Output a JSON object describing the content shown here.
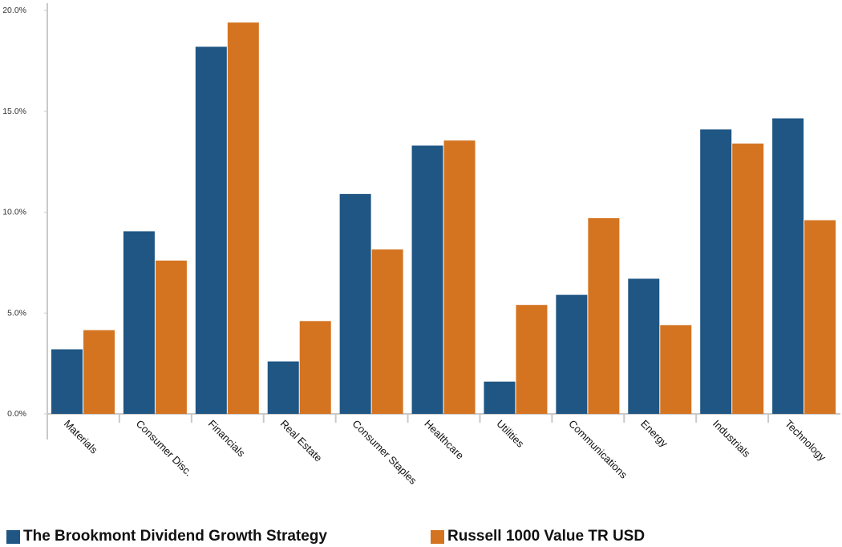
{
  "chart_data": {
    "type": "bar",
    "categories": [
      "Materials",
      "Consumer Disc.",
      "Financials",
      "Real Estate",
      "Consumer Staples",
      "Healthcare",
      "Utilities",
      "Communications",
      "Energy",
      "Industrials",
      "Technology"
    ],
    "series": [
      {
        "name": "The Brookmont Dividend Growth Strategy",
        "color": "#1f5684",
        "values": [
          3.2,
          9.05,
          18.2,
          2.6,
          10.9,
          13.3,
          1.6,
          5.9,
          6.7,
          14.1,
          14.65
        ]
      },
      {
        "name": "Russell 1000 Value TR USD",
        "color": "#d47421",
        "values": [
          4.15,
          7.6,
          19.4,
          4.6,
          8.15,
          13.55,
          5.4,
          9.7,
          4.4,
          13.4,
          9.6
        ]
      }
    ],
    "yticks": [
      "0.0%",
      "5.0%",
      "10.0%",
      "15.0%",
      "20.0%"
    ],
    "ytick_values": [
      0,
      5,
      10,
      15,
      20
    ],
    "ylim": [
      0,
      20
    ],
    "grid": false,
    "legend_position": "bottom"
  }
}
